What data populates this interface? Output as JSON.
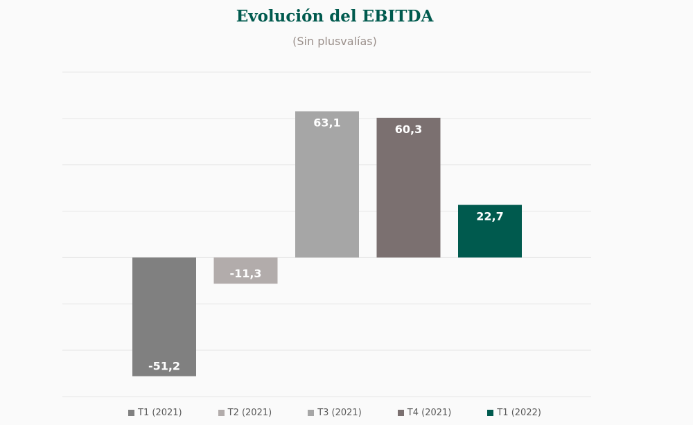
{
  "chart_data": {
    "type": "bar",
    "title": "Evolución del EBITDA",
    "subtitle": "(Sin plusvalías)",
    "categories": [
      "T1 (2021)",
      "T2 (2021)",
      "T3 (2021)",
      "T4 (2021)",
      "T1 (2022)"
    ],
    "values": [
      -51.2,
      -11.3,
      63.1,
      60.3,
      22.7
    ],
    "value_labels": [
      "-51,2",
      "-11,3",
      "63,1",
      "60,3",
      "22,7"
    ],
    "colors": [
      "#808080",
      "#b2acab",
      "#a6a6a6",
      "#7b7070",
      "#005a4e"
    ],
    "ylim": [
      -60,
      80
    ],
    "grid": true,
    "legend": "bottom",
    "xlabel": "",
    "ylabel": ""
  }
}
